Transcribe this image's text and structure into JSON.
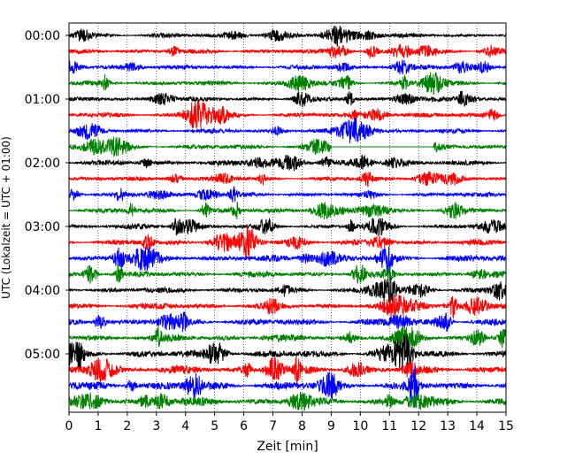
{
  "chart_data": {
    "type": "line",
    "title": "",
    "xlabel": "Zeit  [min]",
    "ylabel": "UTC (Lokalzeit = UTC + 01:00)",
    "xlim": [
      0,
      15
    ],
    "x_ticks": [
      "0",
      "1",
      "2",
      "3",
      "4",
      "5",
      "6",
      "7",
      "8",
      "9",
      "10",
      "11",
      "12",
      "13",
      "14",
      "15"
    ],
    "y_ticks": [
      {
        "label": "00:00",
        "row": 0
      },
      {
        "label": "01:00",
        "row": 4
      },
      {
        "label": "02:00",
        "row": 8
      },
      {
        "label": "03:00",
        "row": 12
      },
      {
        "label": "04:00",
        "row": 16
      },
      {
        "label": "05:00",
        "row": 20
      }
    ],
    "trace_interval_min": 15,
    "grid": {
      "x": true,
      "y": false,
      "style": "dotted"
    },
    "colors": [
      "#000000",
      "#ff0000",
      "#0000ff",
      "#008000"
    ],
    "series": [
      {
        "start": "00:00",
        "color": "#000000",
        "amplitude": 0.12
      },
      {
        "start": "00:15",
        "color": "#ff0000",
        "amplitude": 0.12
      },
      {
        "start": "00:30",
        "color": "#0000ff",
        "amplitude": 0.12
      },
      {
        "start": "00:45",
        "color": "#008000",
        "amplitude": 0.14
      },
      {
        "start": "01:00",
        "color": "#000000",
        "amplitude": 0.12
      },
      {
        "start": "01:15",
        "color": "#ff0000",
        "amplitude": 0.13
      },
      {
        "start": "01:30",
        "color": "#0000ff",
        "amplitude": 0.12
      },
      {
        "start": "01:45",
        "color": "#008000",
        "amplitude": 0.13,
        "gap": [
          9.0,
          12.5
        ]
      },
      {
        "start": "02:00",
        "color": "#000000",
        "amplitude": 0.14
      },
      {
        "start": "02:15",
        "color": "#ff0000",
        "amplitude": 0.12
      },
      {
        "start": "02:30",
        "color": "#0000ff",
        "amplitude": 0.12
      },
      {
        "start": "02:45",
        "color": "#008000",
        "amplitude": 0.14
      },
      {
        "start": "03:00",
        "color": "#000000",
        "amplitude": 0.13
      },
      {
        "start": "03:15",
        "color": "#ff0000",
        "amplitude": 0.15
      },
      {
        "start": "03:30",
        "color": "#0000ff",
        "amplitude": 0.18
      },
      {
        "start": "03:45",
        "color": "#008000",
        "amplitude": 0.16
      },
      {
        "start": "04:00",
        "color": "#000000",
        "amplitude": 0.15
      },
      {
        "start": "04:15",
        "color": "#ff0000",
        "amplitude": 0.17
      },
      {
        "start": "04:30",
        "color": "#0000ff",
        "amplitude": 0.18
      },
      {
        "start": "04:45",
        "color": "#008000",
        "amplitude": 0.19
      },
      {
        "start": "05:00",
        "color": "#000000",
        "amplitude": 0.2
      },
      {
        "start": "05:15",
        "color": "#ff0000",
        "amplitude": 0.21
      },
      {
        "start": "05:30",
        "color": "#0000ff",
        "amplitude": 0.22
      },
      {
        "start": "05:45",
        "color": "#008000",
        "amplitude": 0.22
      }
    ]
  }
}
